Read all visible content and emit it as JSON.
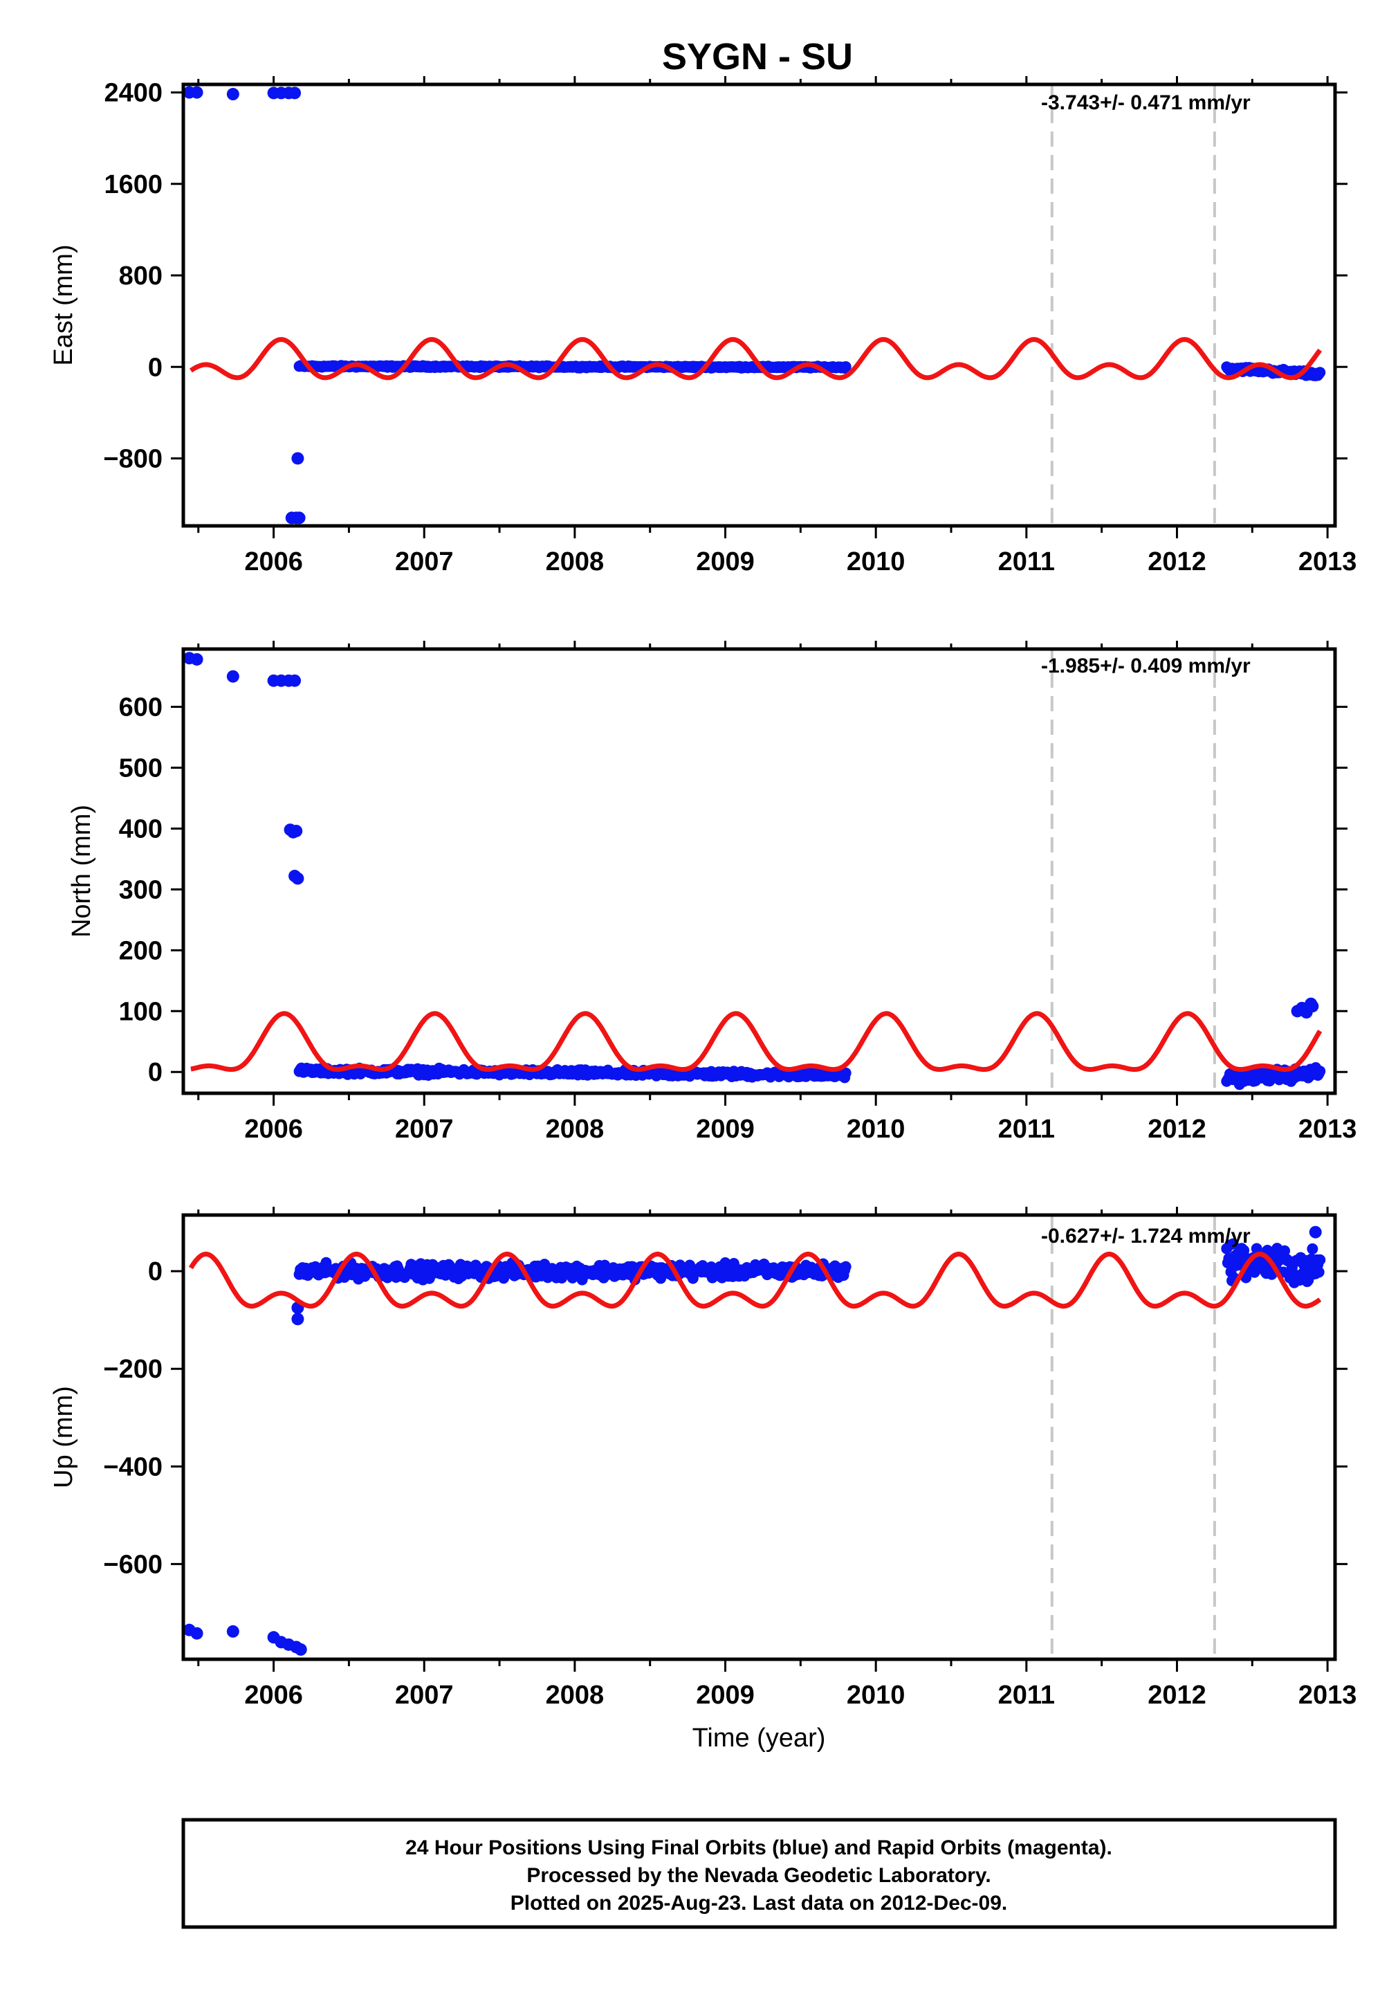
{
  "colors": {
    "data_points": "#0a14f0",
    "model_curve": "#f01414",
    "event_lines": "#c8c8c8",
    "axes": "#000000"
  },
  "chart_data": {
    "title": "SYGN - SU",
    "xlabel": "Time (year)",
    "xlim": [
      2005.4,
      2013.05
    ],
    "x_ticks": [
      "2006",
      "2007",
      "2008",
      "2009",
      "2010",
      "2011",
      "2012",
      "2013"
    ],
    "event_lines_x": [
      2011.17,
      2012.25
    ],
    "panels": [
      {
        "type": "scatter",
        "ylabel": "East (mm)",
        "ylim": [
          -1390,
          2470
        ],
        "y_ticks": [
          "2400",
          "1600",
          "800",
          "0",
          "−800"
        ],
        "rate": "-3.743+/- 0.471 mm/yr",
        "outliers": [
          [
            2005.44,
            2400
          ],
          [
            2005.49,
            2400
          ],
          [
            2005.73,
            2385
          ],
          [
            2006.0,
            2395
          ],
          [
            2006.05,
            2395
          ],
          [
            2006.1,
            2395
          ],
          [
            2006.14,
            2395
          ],
          [
            2006.16,
            -800
          ],
          [
            2006.12,
            -1320
          ],
          [
            2006.15,
            -1320
          ],
          [
            2006.17,
            -1320
          ]
        ],
        "segments": [
          {
            "x": [
              2006.17,
              2009.8
            ],
            "center_start": 5,
            "center_end": -3,
            "scatter": 6
          },
          {
            "x": [
              2012.33,
              2012.95
            ],
            "center_start": -10,
            "center_end": -60,
            "scatter": 18
          }
        ],
        "model": {
          "offset": 25,
          "annual_amp": 110,
          "semi_amp": 105,
          "phase": 0.05
        }
      },
      {
        "type": "scatter",
        "ylabel": "North (mm)",
        "ylim": [
          -35,
          695
        ],
        "y_ticks": [
          "600",
          "500",
          "400",
          "300",
          "200",
          "100",
          "0"
        ],
        "rate": "-1.985+/- 0.409 mm/yr",
        "outliers": [
          [
            2005.44,
            680
          ],
          [
            2005.49,
            678
          ],
          [
            2005.73,
            650
          ],
          [
            2006.0,
            643
          ],
          [
            2006.05,
            643
          ],
          [
            2006.1,
            643
          ],
          [
            2006.14,
            643
          ],
          [
            2006.11,
            398
          ],
          [
            2006.13,
            394
          ],
          [
            2006.15,
            396
          ],
          [
            2006.14,
            322
          ],
          [
            2006.16,
            318
          ]
        ],
        "segments": [
          {
            "x": [
              2006.17,
              2009.8
            ],
            "center_start": 2,
            "center_end": -5,
            "scatter": 4
          },
          {
            "x": [
              2012.33,
              2012.95
            ],
            "center_start": -10,
            "center_end": -2,
            "scatter": 8
          }
        ],
        "extra_points": [
          [
            2012.8,
            100
          ],
          [
            2012.83,
            105
          ],
          [
            2012.86,
            98
          ],
          [
            2012.89,
            112
          ],
          [
            2012.9,
            108
          ]
        ],
        "model": {
          "offset": 35,
          "annual_amp": 43,
          "semi_amp": 18,
          "phase": 0.07
        }
      },
      {
        "type": "scatter",
        "ylabel": "Up (mm)",
        "ylim": [
          -795,
          115
        ],
        "y_ticks": [
          "0",
          "−200",
          "−400",
          "−600"
        ],
        "rate": "-0.627+/- 1.724 mm/yr",
        "outliers": [
          [
            2005.44,
            -735
          ],
          [
            2005.49,
            -742
          ],
          [
            2005.73,
            -738
          ],
          [
            2006.0,
            -750
          ],
          [
            2006.05,
            -760
          ],
          [
            2006.1,
            -765
          ],
          [
            2006.15,
            -770
          ],
          [
            2006.18,
            -775
          ],
          [
            2006.16,
            -75
          ],
          [
            2006.16,
            -98
          ],
          [
            2012.92,
            80
          ]
        ],
        "segments": [
          {
            "x": [
              2006.17,
              2009.8
            ],
            "center_start": 0,
            "center_end": 0,
            "scatter": 12
          },
          {
            "x": [
              2012.33,
              2012.95
            ],
            "center_start": 25,
            "center_end": 5,
            "scatter": 30
          }
        ],
        "model": {
          "offset": -35,
          "annual_amp": 40,
          "semi_amp": 30,
          "phase": 0.55
        }
      }
    ]
  },
  "footer": {
    "line1": "24 Hour Positions Using Final Orbits (blue) and Rapid Orbits (magenta).",
    "line2": "Processed by the Nevada Geodetic Laboratory.",
    "line3": "Plotted on 2025-Aug-23. Last data on 2012-Dec-09."
  }
}
